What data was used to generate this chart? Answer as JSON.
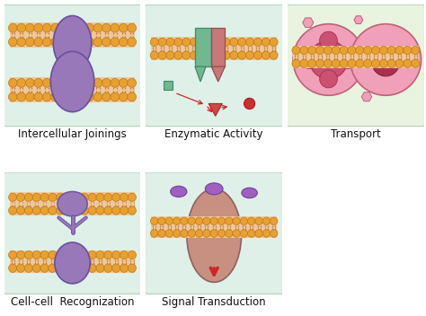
{
  "bg_color": "#ffffff",
  "panel_bg_top": "#dff0e8",
  "panel_bg_bottom": "#e8f0d8",
  "panel_bg_green": "#e8f4e0",
  "head_color": "#e8a030",
  "head_outline": "#b87820",
  "tail_color": "#c87840",
  "membrane_inner": "#f0c898",
  "purple_fill": "#9878b8",
  "purple_edge": "#6850a0",
  "green_fill": "#70b890",
  "green_edge": "#40886a",
  "pink_fill": "#e888a0",
  "pink_light": "#f0b8c8",
  "pink_dark": "#c04868",
  "salmon_fill": "#c89080",
  "salmon_edge": "#906060",
  "red_color": "#cc2828",
  "label_fontsize": 8.5,
  "labels": [
    "Intercellular Joinings",
    "Enzymatic Activity",
    "Transport",
    "Cell-cell  Recognization",
    "Signal Transduction"
  ]
}
